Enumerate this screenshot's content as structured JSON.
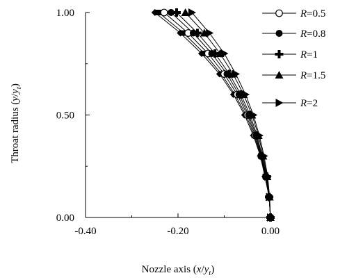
{
  "chart_data": {
    "type": "line",
    "title": "",
    "xlabel": {
      "main": "Nozzle axis (",
      "var": "x",
      "slash": "/",
      "var2": "y",
      "sub": "t",
      "close": ")"
    },
    "ylabel": {
      "main": "Throat radius (",
      "var": "y",
      "slash": "/",
      "var2": "y",
      "sub": "t",
      "close": ")"
    },
    "xlim": [
      -0.4,
      0.0
    ],
    "ylim": [
      0.0,
      1.0
    ],
    "x_ticks": [
      -0.4,
      -0.2,
      0.0
    ],
    "x_tick_labels": [
      "-0.40",
      "-0.20",
      "0.00"
    ],
    "y_ticks": [
      0.0,
      0.5,
      1.0
    ],
    "y_tick_labels": [
      "0.00",
      "0.50",
      "1.00"
    ],
    "grid": false,
    "legend_position": "top-right",
    "y": [
      0.0,
      0.1,
      0.2,
      0.3,
      0.4,
      0.5,
      0.6,
      0.7,
      0.8,
      0.9,
      1.0
    ],
    "series": [
      {
        "name": "R=0.5",
        "var": "R",
        "eq": "=0.5",
        "marker": "circle-open",
        "x": [
          0.0,
          -0.003,
          -0.01,
          -0.02,
          -0.033,
          -0.05,
          -0.072,
          -0.1,
          -0.135,
          -0.178,
          -0.23
        ]
      },
      {
        "name": "R=0.8",
        "var": "R",
        "eq": "=0.8",
        "marker": "circle-filled",
        "x": [
          0.0,
          -0.003,
          -0.009,
          -0.019,
          -0.031,
          -0.047,
          -0.068,
          -0.094,
          -0.127,
          -0.167,
          -0.215
        ]
      },
      {
        "name": "R=1",
        "var": "R",
        "eq": "=1",
        "marker": "plus",
        "x": [
          0.0,
          -0.003,
          -0.008,
          -0.018,
          -0.029,
          -0.044,
          -0.064,
          -0.089,
          -0.12,
          -0.158,
          -0.203
        ]
      },
      {
        "name": "R=1.5",
        "var": "R",
        "eq": "=1.5",
        "marker": "triangle",
        "x": [
          0.0,
          -0.002,
          -0.007,
          -0.016,
          -0.026,
          -0.04,
          -0.058,
          -0.081,
          -0.109,
          -0.143,
          -0.184
        ]
      },
      {
        "name": "R=2",
        "var": "R",
        "eq": "=2",
        "marker": "triangle-right",
        "x": [
          0.0,
          -0.002,
          -0.006,
          -0.014,
          -0.024,
          -0.037,
          -0.054,
          -0.075,
          -0.1,
          -0.132,
          -0.17
        ]
      }
    ],
    "extra_series_unlabeled": [
      {
        "marker": "square",
        "x": [
          0.0,
          -0.003,
          -0.011,
          -0.021,
          -0.035,
          -0.053,
          -0.077,
          -0.106,
          -0.143,
          -0.188,
          -0.242
        ]
      },
      {
        "marker": "diamond",
        "x": [
          0.0,
          -0.003,
          -0.012,
          -0.022,
          -0.037,
          -0.056,
          -0.08,
          -0.11,
          -0.149,
          -0.195,
          -0.25
        ]
      }
    ]
  }
}
